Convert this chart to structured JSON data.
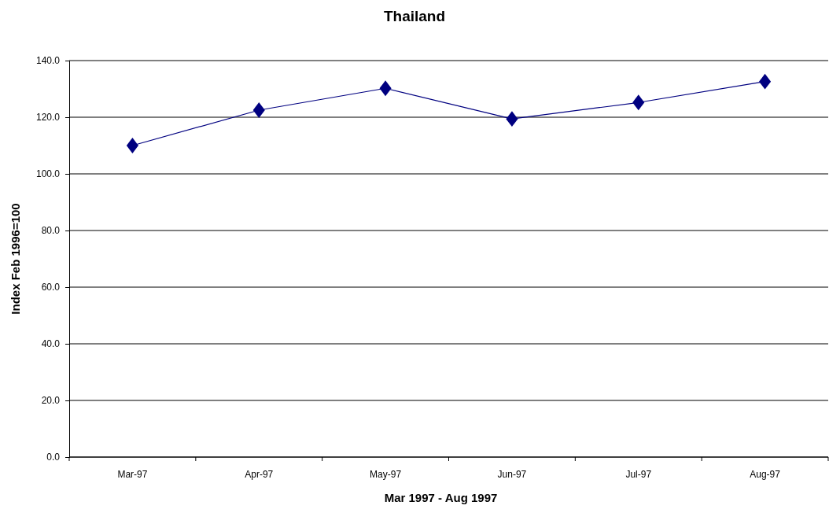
{
  "chart_data": {
    "type": "line",
    "title": "Thailand",
    "xlabel": "Mar 1997 - Aug 1997",
    "ylabel": "Index Feb 1996=100",
    "categories": [
      "Mar-97",
      "Apr-97",
      "May-97",
      "Jun-97",
      "Jul-97",
      "Aug-97"
    ],
    "series": [
      {
        "color": "#000080",
        "values": [
          110.0,
          122.5,
          130.2,
          119.4,
          125.2,
          132.6
        ]
      }
    ],
    "ylim": [
      0,
      140
    ],
    "yticks": [
      {
        "value": 0,
        "label": "0.0"
      },
      {
        "value": 20,
        "label": "20.0"
      },
      {
        "value": 40,
        "label": "40.0"
      },
      {
        "value": 60,
        "label": "60.0"
      },
      {
        "value": 80,
        "label": "80.0"
      },
      {
        "value": 100,
        "label": "100.0"
      },
      {
        "value": 120,
        "label": "120.0"
      },
      {
        "value": 140,
        "label": "140.0"
      }
    ],
    "grid": "y",
    "marker": "diamond",
    "line_style": "solid"
  }
}
